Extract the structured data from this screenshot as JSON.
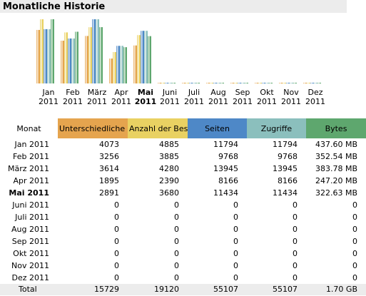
{
  "title": "Monatliche Historie",
  "colors": {
    "visitors": "#e5a44e",
    "visits": "#e9d162",
    "pages": "#4e88c7",
    "hits": "#8bbfbd",
    "bytes": "#5ea76e"
  },
  "chart_data": {
    "type": "bar",
    "categories": [
      {
        "month": "Jan",
        "year": "2011"
      },
      {
        "month": "Feb",
        "year": "2011"
      },
      {
        "month": "März",
        "year": "2011"
      },
      {
        "month": "Apr",
        "year": "2011"
      },
      {
        "month": "Mai",
        "year": "2011",
        "current": true
      },
      {
        "month": "Juni",
        "year": "2011"
      },
      {
        "month": "Juli",
        "year": "2011"
      },
      {
        "month": "Aug",
        "year": "2011"
      },
      {
        "month": "Sep",
        "year": "2011"
      },
      {
        "month": "Okt",
        "year": "2011"
      },
      {
        "month": "Nov",
        "year": "2011"
      },
      {
        "month": "Dez",
        "year": "2011"
      }
    ],
    "series": [
      {
        "name": "Unterschiedliche Besucher",
        "color": "#e5a44e",
        "values": [
          4073,
          3256,
          3614,
          1895,
          2891,
          0,
          0,
          0,
          0,
          0,
          0,
          0
        ]
      },
      {
        "name": "Anzahl der Besuche",
        "color": "#e9d162",
        "values": [
          4885,
          3885,
          4280,
          2390,
          3680,
          0,
          0,
          0,
          0,
          0,
          0,
          0
        ]
      },
      {
        "name": "Seiten",
        "color": "#4e88c7",
        "values": [
          11794,
          9768,
          13945,
          8166,
          11434,
          0,
          0,
          0,
          0,
          0,
          0,
          0
        ]
      },
      {
        "name": "Zugriffe",
        "color": "#8bbfbd",
        "values": [
          11794,
          9768,
          13945,
          8166,
          11434,
          0,
          0,
          0,
          0,
          0,
          0,
          0
        ]
      },
      {
        "name": "Bytes",
        "color": "#5ea76e",
        "values": [
          437.6,
          352.54,
          383.78,
          247.2,
          322.63,
          0,
          0,
          0,
          0,
          0,
          0,
          0
        ]
      }
    ],
    "scale_groups": [
      [
        0,
        1
      ],
      [
        2,
        3
      ],
      [
        4
      ]
    ]
  },
  "table": {
    "headers": [
      "Monat",
      "Unterschiedliche Besucher",
      "Anzahl der Besuche",
      "Seiten",
      "Zugriffe",
      "Bytes"
    ],
    "rows": [
      [
        "Jan 2011",
        "4073",
        "4885",
        "11794",
        "11794",
        "437.60 MB"
      ],
      [
        "Feb 2011",
        "3256",
        "3885",
        "9768",
        "9768",
        "352.54 MB"
      ],
      [
        "März 2011",
        "3614",
        "4280",
        "13945",
        "13945",
        "383.78 MB"
      ],
      [
        "Apr 2011",
        "1895",
        "2390",
        "8166",
        "8166",
        "247.20 MB"
      ],
      [
        "Mai 2011",
        "2891",
        "3680",
        "11434",
        "11434",
        "322.63 MB"
      ],
      [
        "Juni 2011",
        "0",
        "0",
        "0",
        "0",
        "0"
      ],
      [
        "Juli 2011",
        "0",
        "0",
        "0",
        "0",
        "0"
      ],
      [
        "Aug 2011",
        "0",
        "0",
        "0",
        "0",
        "0"
      ],
      [
        "Sep 2011",
        "0",
        "0",
        "0",
        "0",
        "0"
      ],
      [
        "Okt 2011",
        "0",
        "0",
        "0",
        "0",
        "0"
      ],
      [
        "Nov 2011",
        "0",
        "0",
        "0",
        "0",
        "0"
      ],
      [
        "Dez 2011",
        "0",
        "0",
        "0",
        "0",
        "0"
      ]
    ],
    "current_row": 4,
    "total": [
      "Total",
      "15729",
      "19120",
      "55107",
      "55107",
      "1.70 GB"
    ]
  }
}
